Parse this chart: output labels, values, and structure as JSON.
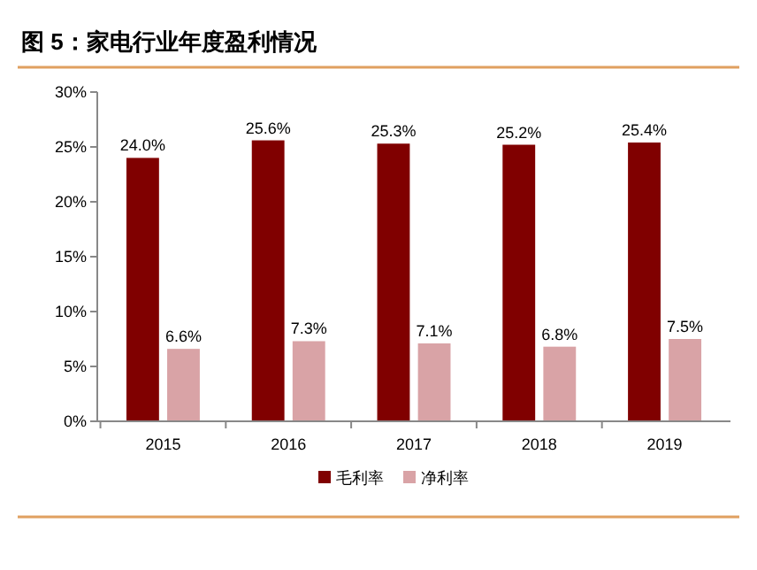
{
  "chart_data": {
    "type": "bar",
    "title": "图 5：家电行业年度盈利情况",
    "categories": [
      "2015",
      "2016",
      "2017",
      "2018",
      "2019"
    ],
    "series": [
      {
        "name": "毛利率",
        "color": "#800000",
        "values": [
          24.0,
          25.6,
          25.3,
          25.2,
          25.4
        ],
        "value_labels": [
          "24.0%",
          "25.6%",
          "25.3%",
          "25.2%",
          "25.4%"
        ]
      },
      {
        "name": "净利率",
        "color": "#d9a3a6",
        "values": [
          6.6,
          7.3,
          7.1,
          6.8,
          7.5
        ],
        "value_labels": [
          "6.6%",
          "7.3%",
          "7.1%",
          "6.8%",
          "7.5%"
        ]
      }
    ],
    "ylim": [
      0,
      30
    ],
    "yticks": [
      {
        "value": 0,
        "label": "0%"
      },
      {
        "value": 5,
        "label": "5%"
      },
      {
        "value": 10,
        "label": "10%"
      },
      {
        "value": 15,
        "label": "15%"
      },
      {
        "value": 20,
        "label": "20%"
      },
      {
        "value": 25,
        "label": "25%"
      },
      {
        "value": 30,
        "label": "30%"
      }
    ],
    "grid": false,
    "legend": "bottom"
  }
}
